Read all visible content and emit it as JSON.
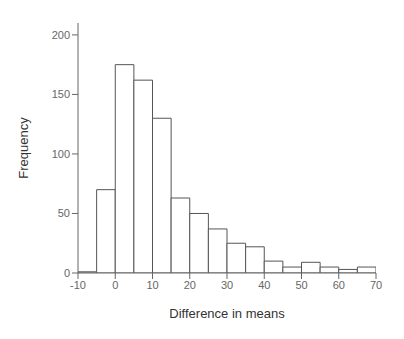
{
  "chart_data": {
    "type": "histogram",
    "bins": [
      -10,
      -5,
      0,
      5,
      10,
      15,
      20,
      25,
      30,
      35,
      40,
      45,
      50,
      55,
      60,
      65,
      70
    ],
    "values": [
      1,
      70,
      175,
      162,
      130,
      63,
      50,
      37,
      25,
      22,
      10,
      5,
      9,
      5,
      3,
      5
    ],
    "xlabel": "Difference in means",
    "ylabel": "Frequency",
    "xlim": [
      -10,
      70
    ],
    "ylim": [
      0,
      210
    ],
    "xticks": [
      -10,
      0,
      10,
      20,
      30,
      40,
      50,
      60,
      70
    ],
    "yticks": [
      0,
      50,
      100,
      150,
      200
    ],
    "color": "#ffffff",
    "grid": false
  }
}
